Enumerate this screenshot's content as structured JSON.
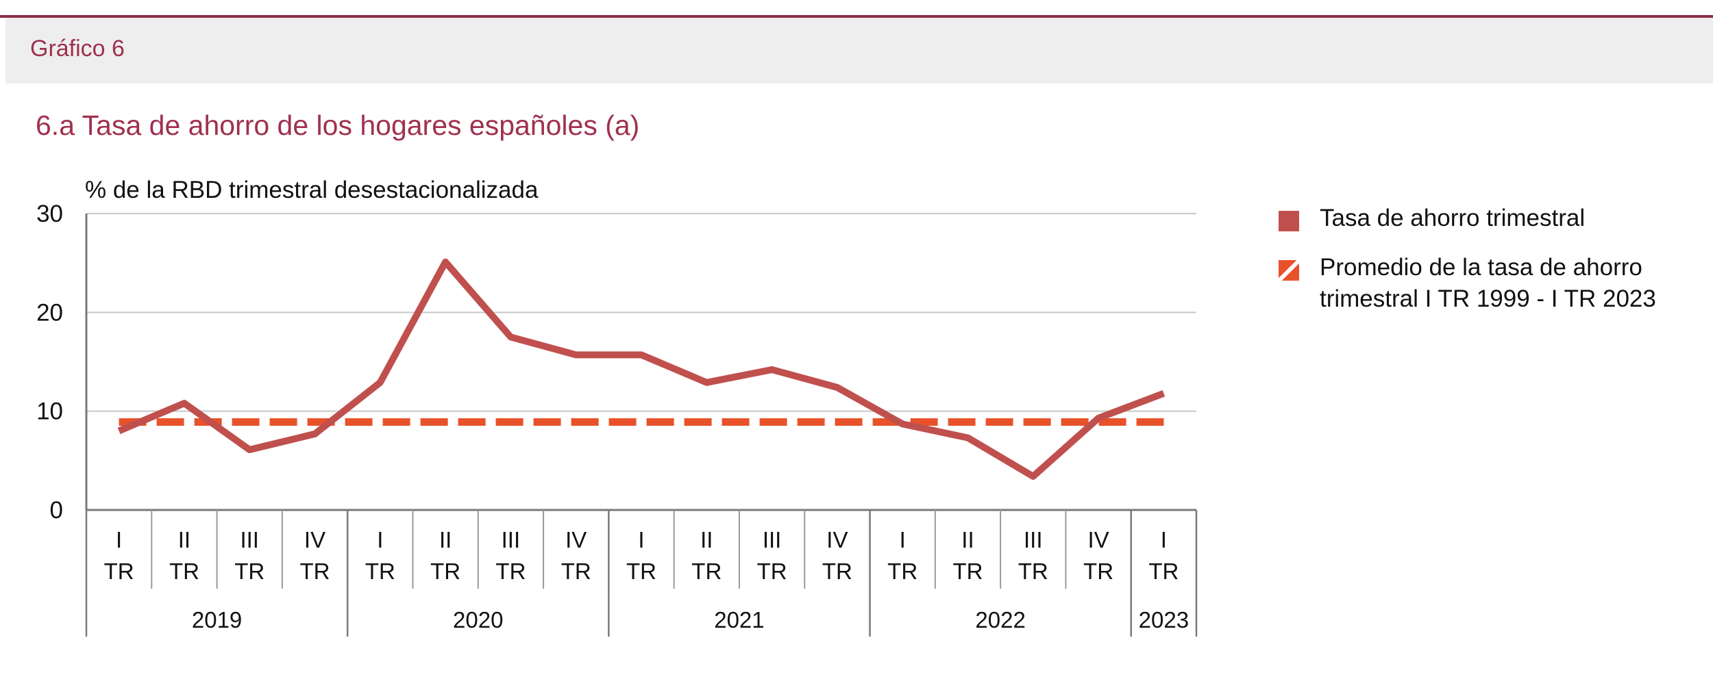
{
  "header": {
    "figure_label": "Gráfico 6"
  },
  "chart_data": {
    "type": "line",
    "title": "6.a  Tasa de ahorro de los hogares españoles (a)",
    "ylabel": "% de la RBD trimestral desestacionalizada",
    "xlabel": "",
    "ylim": [
      0,
      30
    ],
    "yticks": [
      0,
      10,
      20,
      30
    ],
    "grid": true,
    "categories": [
      {
        "q": "I",
        "tr": "TR"
      },
      {
        "q": "II",
        "tr": "TR"
      },
      {
        "q": "III",
        "tr": "TR"
      },
      {
        "q": "IV",
        "tr": "TR"
      },
      {
        "q": "I",
        "tr": "TR"
      },
      {
        "q": "II",
        "tr": "TR"
      },
      {
        "q": "III",
        "tr": "TR"
      },
      {
        "q": "IV",
        "tr": "TR"
      },
      {
        "q": "I",
        "tr": "TR"
      },
      {
        "q": "II",
        "tr": "TR"
      },
      {
        "q": "III",
        "tr": "TR"
      },
      {
        "q": "IV",
        "tr": "TR"
      },
      {
        "q": "I",
        "tr": "TR"
      },
      {
        "q": "II",
        "tr": "TR"
      },
      {
        "q": "III",
        "tr": "TR"
      },
      {
        "q": "IV",
        "tr": "TR"
      },
      {
        "q": "I",
        "tr": "TR"
      }
    ],
    "years": [
      {
        "label": "2019",
        "quarters": 4
      },
      {
        "label": "2020",
        "quarters": 4
      },
      {
        "label": "2021",
        "quarters": 4
      },
      {
        "label": "2022",
        "quarters": 4
      },
      {
        "label": "2023",
        "quarters": 1
      }
    ],
    "series": [
      {
        "name": "Tasa de ahorro trimestral",
        "style": "solid",
        "color": "#c0504d",
        "values": [
          8.0,
          10.8,
          6.1,
          7.7,
          12.9,
          25.1,
          17.5,
          15.7,
          15.7,
          12.9,
          14.2,
          12.4,
          8.7,
          7.3,
          3.4,
          9.3,
          11.8
        ]
      },
      {
        "name": "Promedio de la tasa de ahorro trimestral I TR 1999 - I TR 2023",
        "style": "dashed",
        "color": "#e8522b",
        "values": [
          8.9,
          8.9,
          8.9,
          8.9,
          8.9,
          8.9,
          8.9,
          8.9,
          8.9,
          8.9,
          8.9,
          8.9,
          8.9,
          8.9,
          8.9,
          8.9,
          8.9
        ]
      }
    ],
    "legend": {
      "position": "right",
      "items": [
        "Tasa de ahorro trimestral",
        "Promedio de la tasa de ahorro trimestral I TR 1999 - I TR 2023"
      ]
    }
  }
}
